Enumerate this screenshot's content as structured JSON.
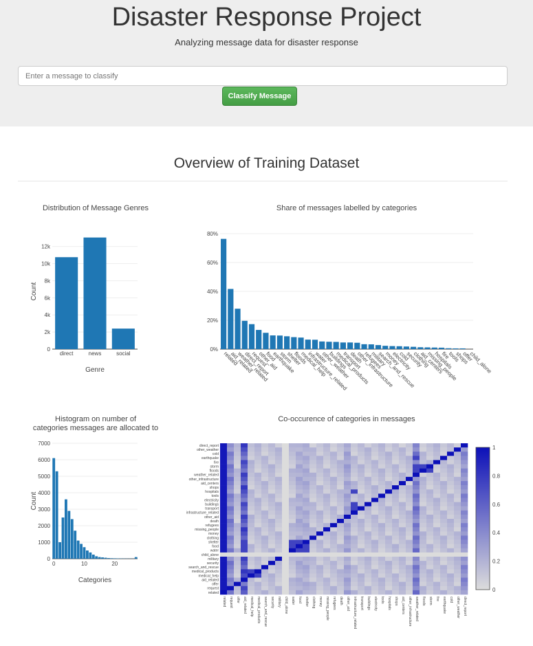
{
  "header": {
    "title": "Disaster Response Project",
    "subtitle": "Analyzing message data for disaster response",
    "input_placeholder": "Enter a message to classify",
    "classify_label": "Classify Message"
  },
  "overview_title": "Overview of Training Dataset",
  "colors": {
    "bar": "#1f77b4",
    "heat_low": "#dcdcdc",
    "heat_high": "#0c10b8"
  },
  "chart_data": [
    {
      "type": "bar",
      "title": "Distribution of Message Genres",
      "xlabel": "Genre",
      "ylabel": "Count",
      "categories": [
        "direct",
        "news",
        "social"
      ],
      "values": [
        10750,
        13050,
        2400
      ],
      "ylim": [
        0,
        13500
      ],
      "yticks": [
        0,
        2000,
        4000,
        6000,
        8000,
        10000,
        12000
      ],
      "ytick_labels": [
        "0",
        "2k",
        "4k",
        "6k",
        "8k",
        "10k",
        "12k"
      ]
    },
    {
      "type": "bar",
      "title": "Share of messages labelled by categories",
      "xlabel": "",
      "ylabel": "",
      "categories": [
        "related",
        "aid_related",
        "weather_related",
        "direct_report",
        "request",
        "other_aid",
        "food",
        "earthquake",
        "storm",
        "shelter",
        "floods",
        "medical_help",
        "infrastructure_related",
        "water",
        "other_weather",
        "buildings",
        "medical_products",
        "transport",
        "death",
        "other_infrastructure",
        "refugees",
        "military",
        "search_and_rescue",
        "money",
        "electricity",
        "cold",
        "security",
        "clothing",
        "aid_centers",
        "missing_people",
        "hospitals",
        "fire",
        "tools",
        "shops",
        "offer",
        "child_alone"
      ],
      "values": [
        76.4,
        41.7,
        28.0,
        19.6,
        17.3,
        13.3,
        11.3,
        9.5,
        9.4,
        8.9,
        8.3,
        8.0,
        6.6,
        6.5,
        5.3,
        5.1,
        5.0,
        4.6,
        4.6,
        4.4,
        3.4,
        3.3,
        2.8,
        2.3,
        2.1,
        2.0,
        1.8,
        1.6,
        1.3,
        1.2,
        1.1,
        1.0,
        0.6,
        0.5,
        0.5,
        0.0
      ],
      "ylim": [
        0,
        80
      ],
      "yticks": [
        0,
        20,
        40,
        60,
        80
      ],
      "ytick_labels": [
        "0%",
        "20%",
        "40%",
        "60%",
        "80%"
      ]
    },
    {
      "type": "bar",
      "title": "Histogram on number of\ncategories messages are allocated to",
      "title_lines": [
        "Histogram on number of",
        "categories messages are allocated to"
      ],
      "xlabel": "Categories",
      "ylabel": "Count",
      "categories": [
        0,
        1,
        2,
        3,
        4,
        5,
        6,
        7,
        8,
        9,
        10,
        11,
        12,
        13,
        14,
        15,
        16,
        17,
        18,
        19,
        20,
        21,
        22,
        23,
        24,
        25,
        26,
        27
      ],
      "values": [
        6100,
        5300,
        1000,
        2500,
        3600,
        2900,
        2400,
        1700,
        1100,
        900,
        700,
        500,
        380,
        250,
        150,
        100,
        80,
        60,
        40,
        30,
        25,
        20,
        15,
        12,
        10,
        8,
        6,
        100
      ],
      "ylim": [
        0,
        7000
      ],
      "yticks": [
        0,
        1000,
        2000,
        3000,
        4000,
        5000,
        6000,
        7000
      ],
      "ytick_labels": [
        "0",
        "1000",
        "2000",
        "3000",
        "4000",
        "5000",
        "6000",
        "7000"
      ],
      "xticks": [
        0,
        10,
        20
      ],
      "xtick_labels": [
        "0",
        "10",
        "20"
      ],
      "xlim": [
        -0.5,
        27.5
      ]
    },
    {
      "type": "heatmap",
      "title": "Co-occurence of categories in messages",
      "y_labels": [
        "direct_report",
        "other_weather",
        "cold",
        "earthquake",
        "fire",
        "storm",
        "floods",
        "weather_related",
        "other_infrastructure",
        "aid_centers",
        "shops",
        "hospitals",
        "tools",
        "electricity",
        "buildings",
        "transport",
        "infrastructure_related",
        "other_aid",
        "death",
        "refugees",
        "missing_people",
        "money",
        "clothing",
        "shelter",
        "food",
        "water",
        "child_alone",
        "military",
        "security",
        "search_and_rescue",
        "medical_products",
        "medical_help",
        "aid_related",
        "offer",
        "request",
        "related"
      ],
      "x_labels": [
        "related",
        "request",
        "offer",
        "aid_related",
        "medical_help",
        "medical_products",
        "search_and_rescue",
        "security",
        "military",
        "child_alone",
        "water",
        "food",
        "shelter",
        "clothing",
        "money",
        "missing_people",
        "refugees",
        "death",
        "other_aid",
        "infrastructure_related",
        "transport",
        "buildings",
        "electricity",
        "tools",
        "hospitals",
        "shops",
        "aid_centers",
        "other_infrastructure",
        "weather_related",
        "floods",
        "storm",
        "fire",
        "earthquake",
        "cold",
        "other_weather",
        "direct_report"
      ],
      "colorbar_ticks": [
        "0",
        "0.2",
        "0.4",
        "0.6",
        "0.8",
        "1"
      ]
    }
  ]
}
